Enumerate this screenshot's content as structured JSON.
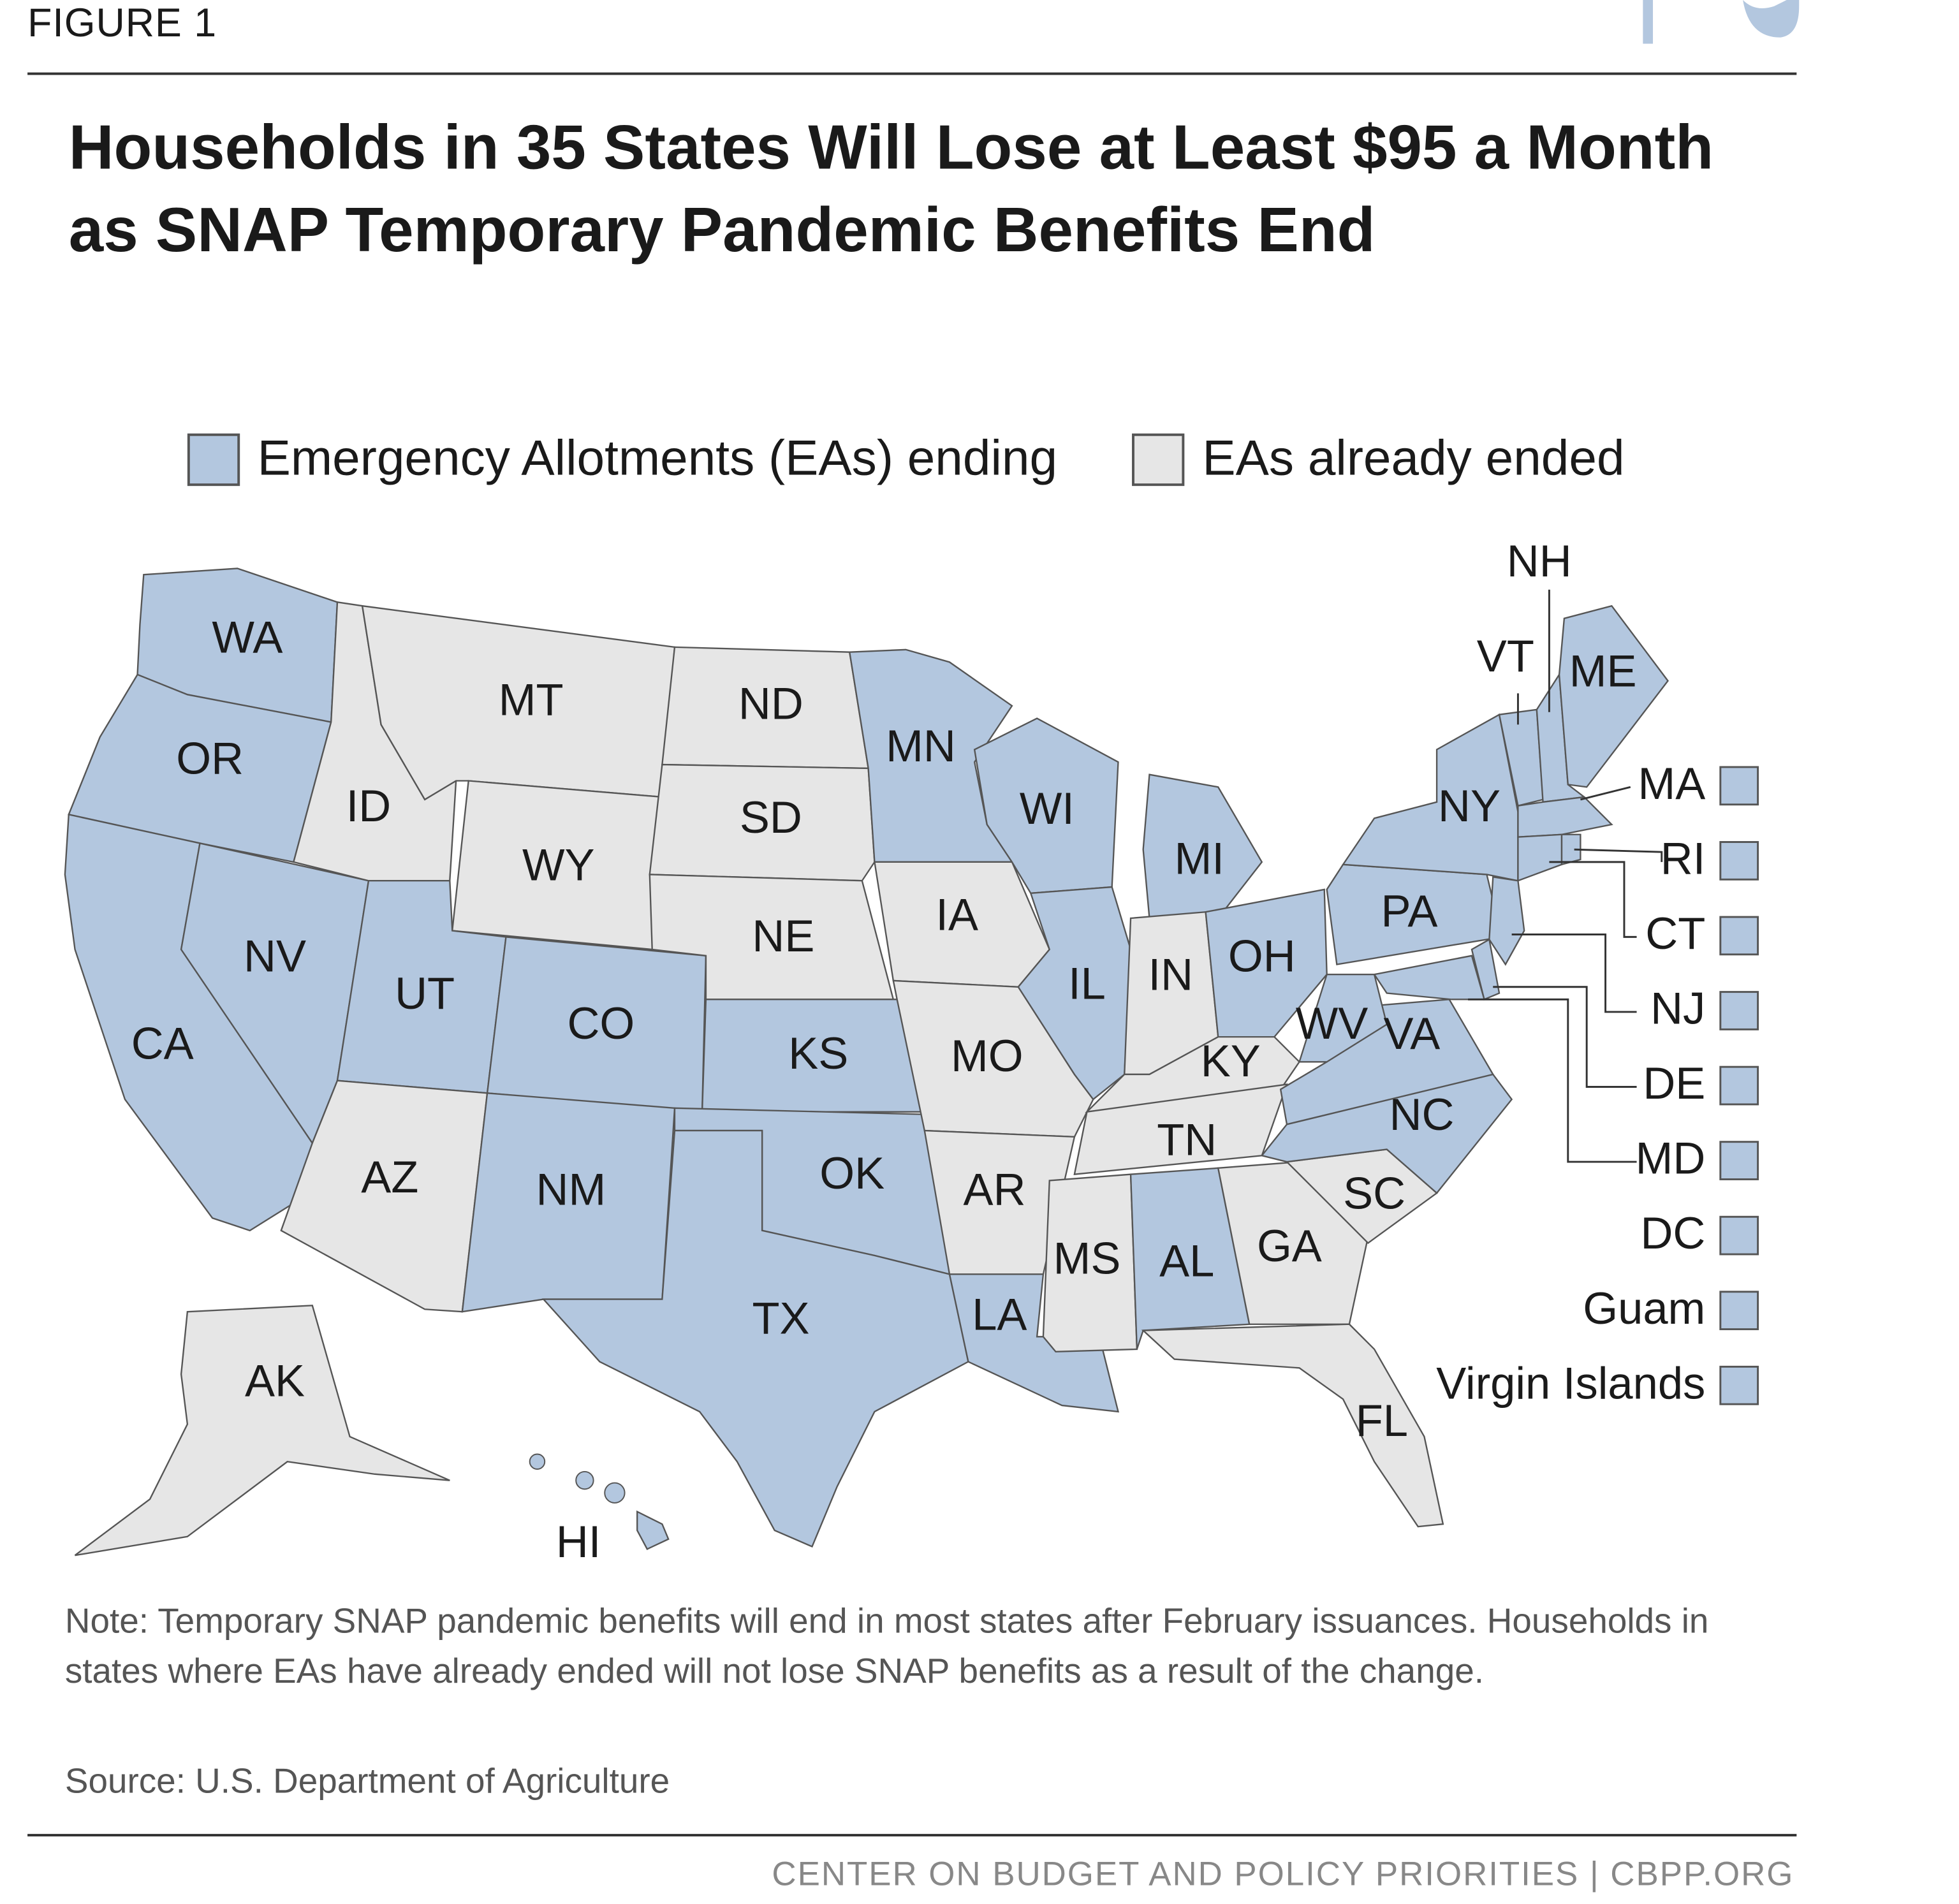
{
  "header": {
    "figure_label": "FIGURE 1",
    "share_icons": [
      "facebook-icon",
      "twitter-icon"
    ]
  },
  "title": "Households in 35 States Will Lose at Least $95 a Month as SNAP Temporary Pandemic Benefits End",
  "legend": [
    {
      "label": "Emergency Allotments (EAs) ending",
      "status": "ending"
    },
    {
      "label": "EAs already ended",
      "status": "ended"
    }
  ],
  "colors": {
    "ending": "#b3c7df",
    "ended": "#e6e6e6",
    "border": "#555555",
    "share_icon": "#b3c7df"
  },
  "states": [
    {
      "abbr": "WA",
      "status": "ending"
    },
    {
      "abbr": "OR",
      "status": "ending"
    },
    {
      "abbr": "CA",
      "status": "ending"
    },
    {
      "abbr": "NV",
      "status": "ending"
    },
    {
      "abbr": "ID",
      "status": "ended"
    },
    {
      "abbr": "MT",
      "status": "ended"
    },
    {
      "abbr": "WY",
      "status": "ended"
    },
    {
      "abbr": "UT",
      "status": "ending"
    },
    {
      "abbr": "CO",
      "status": "ending"
    },
    {
      "abbr": "AZ",
      "status": "ended"
    },
    {
      "abbr": "NM",
      "status": "ending"
    },
    {
      "abbr": "ND",
      "status": "ended"
    },
    {
      "abbr": "SD",
      "status": "ended"
    },
    {
      "abbr": "NE",
      "status": "ended"
    },
    {
      "abbr": "KS",
      "status": "ending"
    },
    {
      "abbr": "OK",
      "status": "ending"
    },
    {
      "abbr": "TX",
      "status": "ending"
    },
    {
      "abbr": "MN",
      "status": "ending"
    },
    {
      "abbr": "IA",
      "status": "ended"
    },
    {
      "abbr": "MO",
      "status": "ended"
    },
    {
      "abbr": "AR",
      "status": "ended"
    },
    {
      "abbr": "LA",
      "status": "ending"
    },
    {
      "abbr": "WI",
      "status": "ending"
    },
    {
      "abbr": "IL",
      "status": "ending"
    },
    {
      "abbr": "MI",
      "status": "ending"
    },
    {
      "abbr": "IN",
      "status": "ended"
    },
    {
      "abbr": "OH",
      "status": "ending"
    },
    {
      "abbr": "KY",
      "status": "ended"
    },
    {
      "abbr": "TN",
      "status": "ended"
    },
    {
      "abbr": "MS",
      "status": "ended"
    },
    {
      "abbr": "AL",
      "status": "ending"
    },
    {
      "abbr": "GA",
      "status": "ended"
    },
    {
      "abbr": "FL",
      "status": "ended"
    },
    {
      "abbr": "SC",
      "status": "ended"
    },
    {
      "abbr": "NC",
      "status": "ending"
    },
    {
      "abbr": "VA",
      "status": "ending"
    },
    {
      "abbr": "WV",
      "status": "ending"
    },
    {
      "abbr": "PA",
      "status": "ending"
    },
    {
      "abbr": "NY",
      "status": "ending"
    },
    {
      "abbr": "VT",
      "status": "ending"
    },
    {
      "abbr": "NH",
      "status": "ending"
    },
    {
      "abbr": "ME",
      "status": "ending"
    },
    {
      "abbr": "MA",
      "status": "ending"
    },
    {
      "abbr": "CT",
      "status": "ending"
    },
    {
      "abbr": "RI",
      "status": "ending"
    },
    {
      "abbr": "NJ",
      "status": "ending"
    },
    {
      "abbr": "DE",
      "status": "ending"
    },
    {
      "abbr": "MD",
      "status": "ending"
    },
    {
      "abbr": "AK",
      "status": "ended"
    },
    {
      "abbr": "HI",
      "status": "ending"
    }
  ],
  "side_list": [
    {
      "label": "MA",
      "status": "ending"
    },
    {
      "label": "RI",
      "status": "ending"
    },
    {
      "label": "CT",
      "status": "ending"
    },
    {
      "label": "NJ",
      "status": "ending"
    },
    {
      "label": "DE",
      "status": "ending"
    },
    {
      "label": "MD",
      "status": "ending"
    },
    {
      "label": "DC",
      "status": "ending"
    },
    {
      "label": "Guam",
      "status": "ending"
    },
    {
      "label": "Virgin Islands",
      "status": "ending"
    }
  ],
  "note": "Note: Temporary SNAP pandemic benefits will end in most states after February issuances. Households in states where EAs have already ended will not lose SNAP benefits as a result of the change.",
  "source": "Source: U.S. Department of Agriculture",
  "footer": "CENTER ON BUDGET AND POLICY PRIORITIES | CBPP.ORG"
}
